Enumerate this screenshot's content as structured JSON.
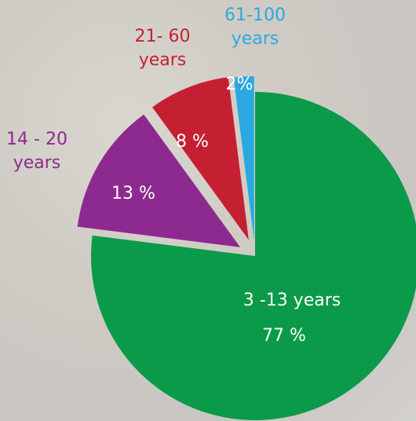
{
  "chart_data": {
    "type": "pie",
    "categories": [
      "3 -13 years",
      "14 - 20 years",
      "21- 60 years",
      "61-100 years"
    ],
    "values": [
      77,
      13,
      8,
      2
    ],
    "value_labels": [
      "77 %",
      "13 %",
      "8 %",
      "2%"
    ],
    "colors": [
      "#0b9a49",
      "#8d2a8f",
      "#c51f32",
      "#2aa9e0"
    ]
  }
}
